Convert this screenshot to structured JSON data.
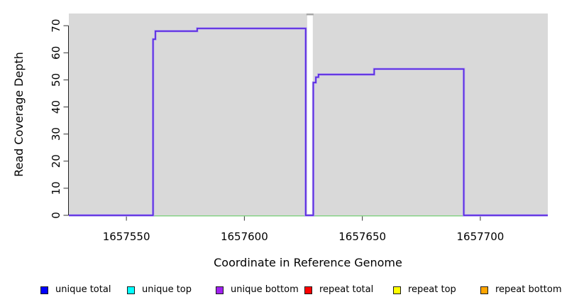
{
  "chart_data": {
    "type": "line",
    "subtype": "step-coverage",
    "title": "",
    "xlabel": "Coordinate in Reference Genome",
    "ylabel": "Read Coverage Depth",
    "xlim": [
      1657525.6,
      1657728.6
    ],
    "ylim": [
      0,
      74.5
    ],
    "x_ticks": [
      1657550,
      1657600,
      1657650,
      1657700
    ],
    "y_ticks": [
      0,
      10,
      20,
      30,
      40,
      50,
      60,
      70
    ],
    "grid": "off",
    "plot_bg_color": "#d9d9d9",
    "gap_region": {
      "start": 1657626.6,
      "end": 1657629.0,
      "fill": "#ffffff",
      "top_sliver_color": "#a6a6a6"
    },
    "baseline": {
      "value": 0,
      "color": "#86d086"
    },
    "series": [
      {
        "name": "unique bottom",
        "color": "#5b2be0",
        "halo_color": "#b7a9f0",
        "steps": [
          [
            1657525.6,
            0
          ],
          [
            1657561.3,
            65
          ],
          [
            1657562.3,
            68
          ],
          [
            1657580.0,
            69
          ],
          [
            1657626.0,
            0
          ],
          [
            1657629.2,
            49
          ],
          [
            1657630.3,
            51
          ],
          [
            1657631.4,
            52
          ],
          [
            1657655.0,
            54
          ],
          [
            1657693.0,
            0
          ]
        ],
        "end_x": 1657728.6
      }
    ]
  },
  "legend": {
    "items": [
      {
        "label": "unique total",
        "color": "#0000ff"
      },
      {
        "label": "unique top",
        "color": "#00ffff"
      },
      {
        "label": "unique bottom",
        "color": "#a020f0"
      },
      {
        "label": "repeat total",
        "color": "#ff0000"
      },
      {
        "label": "repeat top",
        "color": "#ffff00"
      },
      {
        "label": "repeat bottom",
        "color": "#ffa500"
      }
    ]
  }
}
